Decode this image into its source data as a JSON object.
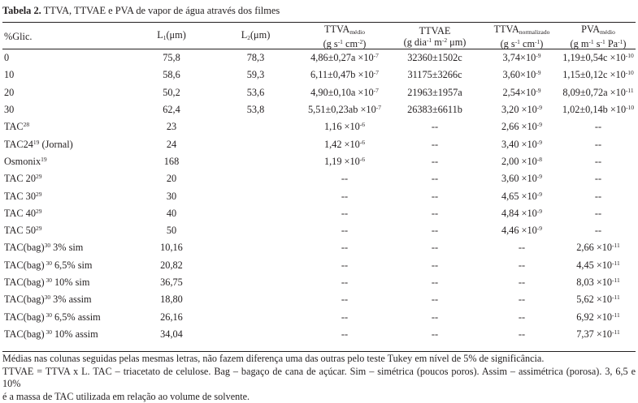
{
  "caption": {
    "label": "Tabela 2.",
    "text": " TTVA, TTVAE e PVA de vapor de água através dos filmes"
  },
  "headers": {
    "glic": "%Glic.",
    "l1": "L",
    "l1_sub": "1",
    "l1_unit": "(μm)",
    "l2": "L",
    "l2_sub": "2",
    "l2_unit": "(μm)",
    "ttva": "TTVA",
    "ttva_sub": "médio",
    "ttva_unit": "(g s-1 cm-2)",
    "ttvae": "TTVAE",
    "ttvae_unit": "(g dia-1 m-2 μm)",
    "ttvan": "TTVA",
    "ttvan_sub": "normalizado",
    "ttvan_unit": "(g s-1 cm-1)",
    "pva": "PVA",
    "pva_sub": "médio",
    "pva_unit": "(g m-1 s-1 Pa-1)"
  },
  "rows": [
    {
      "name": "0",
      "sup": "",
      "name2": "",
      "l1": "75,8",
      "l2": "78,3",
      "ttva": "4,86±0,27a ×10",
      "ttva_exp": "-7",
      "ttvae": "32360±1502c",
      "ttvan": "3,74×10",
      "ttvan_exp": "-9",
      "pva": "1,19±0,54c ×10",
      "pva_exp": "-10"
    },
    {
      "name": "10",
      "sup": "",
      "name2": "",
      "l1": "58,6",
      "l2": "59,3",
      "ttva": "6,11±0,47b ×10",
      "ttva_exp": "-7",
      "ttvae": "31175±3266c",
      "ttvan": "3,60×10",
      "ttvan_exp": "-9",
      "pva": "1,15±0,12c ×10",
      "pva_exp": "-10"
    },
    {
      "name": "20",
      "sup": "",
      "name2": "",
      "l1": "50,2",
      "l2": "53,6",
      "ttva": "4,90±0,10a ×10",
      "ttva_exp": "-7",
      "ttvae": "21963±1957a",
      "ttvan": "2,54×10",
      "ttvan_exp": "-9",
      "pva": "8,09±0,72a ×10",
      "pva_exp": "-11"
    },
    {
      "name": "30",
      "sup": "",
      "name2": "",
      "l1": "62,4",
      "l2": "53,8",
      "ttva": "5,51±0,23ab ×10",
      "ttva_exp": "-7",
      "ttvae": "26383±6611b",
      "ttvan": "3,20 ×10",
      "ttvan_exp": "-9",
      "pva": "1,02±0,14b ×10",
      "pva_exp": "-10"
    },
    {
      "name": "TAC",
      "sup": "28",
      "name2": "",
      "l1": "23",
      "l2": "",
      "ttva": "1,16 ×10",
      "ttva_exp": "-6",
      "ttvae": "--",
      "ttvan": "2,66 ×10",
      "ttvan_exp": "-9",
      "pva": "--",
      "pva_exp": ""
    },
    {
      "name": "TAC24",
      "sup": "19",
      "name2": " (Jornal)",
      "l1": "24",
      "l2": "",
      "ttva": "1,42 ×10",
      "ttva_exp": "-6",
      "ttvae": "--",
      "ttvan": "3,40 ×10",
      "ttvan_exp": "-9",
      "pva": "--",
      "pva_exp": ""
    },
    {
      "name": "Osmonix",
      "sup": "19",
      "name2": "",
      "l1": "168",
      "l2": "",
      "ttva": "1,19 ×10",
      "ttva_exp": "-6",
      "ttvae": "--",
      "ttvan": "2,00 ×10",
      "ttvan_exp": "-8",
      "pva": "--",
      "pva_exp": ""
    },
    {
      "name": "TAC 20",
      "sup": "29",
      "name2": "",
      "l1": "20",
      "l2": "",
      "ttva": "--",
      "ttva_exp": "",
      "ttvae": "--",
      "ttvan": "3,60 ×10",
      "ttvan_exp": "-9",
      "pva": "--",
      "pva_exp": ""
    },
    {
      "name": "TAC 30",
      "sup": "29",
      "name2": "",
      "l1": "30",
      "l2": "",
      "ttva": "--",
      "ttva_exp": "",
      "ttvae": "--",
      "ttvan": "4,65 ×10",
      "ttvan_exp": "-9",
      "pva": "--",
      "pva_exp": ""
    },
    {
      "name": "TAC 40",
      "sup": "29",
      "name2": "",
      "l1": "40",
      "l2": "",
      "ttva": "--",
      "ttva_exp": "",
      "ttvae": "--",
      "ttvan": "4,84 ×10",
      "ttvan_exp": "-9",
      "pva": "--",
      "pva_exp": ""
    },
    {
      "name": "TAC 50",
      "sup": "29",
      "name2": "",
      "l1": "50",
      "l2": "",
      "ttva": "--",
      "ttva_exp": "",
      "ttvae": "--",
      "ttvan": "4,46 ×10",
      "ttvan_exp": "-9",
      "pva": "--",
      "pva_exp": ""
    },
    {
      "name": "TAC(bag)",
      "sup": "30",
      "name2": " 3% sim",
      "l1": "10,16",
      "l2": "",
      "ttva": "--",
      "ttva_exp": "",
      "ttvae": "--",
      "ttvan": "--",
      "ttvan_exp": "",
      "pva": "2,66 ×10",
      "pva_exp": "-11"
    },
    {
      "name": "TAC(bag)",
      "sup": " 30",
      "name2": " 6,5% sim",
      "l1": "20,82",
      "l2": "",
      "ttva": "--",
      "ttva_exp": "",
      "ttvae": "--",
      "ttvan": "--",
      "ttvan_exp": "",
      "pva": "4,45 ×10",
      "pva_exp": "-11"
    },
    {
      "name": "TAC(bag)",
      "sup": " 30",
      "name2": " 10% sim",
      "l1": "36,75",
      "l2": "",
      "ttva": "--",
      "ttva_exp": "",
      "ttvae": "--",
      "ttvan": "--",
      "ttvan_exp": "",
      "pva": "8,03 ×10",
      "pva_exp": "-11"
    },
    {
      "name": "TAC(bag)",
      "sup": "30",
      "name2": " 3% assim",
      "l1": "18,80",
      "l2": "",
      "ttva": "--",
      "ttva_exp": "",
      "ttvae": "--",
      "ttvan": "--",
      "ttvan_exp": "",
      "pva": "5,62 ×10",
      "pva_exp": "-11"
    },
    {
      "name": "TAC(bag)",
      "sup": " 30",
      "name2": " 6,5% assim",
      "l1": "26,16",
      "l2": "",
      "ttva": "--",
      "ttva_exp": "",
      "ttvae": "--",
      "ttvan": "--",
      "ttvan_exp": "",
      "pva": "6,92 ×10",
      "pva_exp": "-11"
    },
    {
      "name": "TAC(bag)",
      "sup": " 30",
      "name2": " 10% assim",
      "l1": "34,04",
      "l2": "",
      "ttva": "--",
      "ttva_exp": "",
      "ttvae": "--",
      "ttvan": "--",
      "ttvan_exp": "",
      "pva": "7,37 ×10",
      "pva_exp": "-11"
    }
  ],
  "notes": {
    "line1": "Médias nas colunas seguidas pelas mesmas letras, não fazem diferença uma das outras pelo teste Tukey em nível de 5% de significância.",
    "line2": "TTVAE = TTVA x L. TAC – triacetato de celulose. Bag – bagaço de cana de açúcar. Sim – simétrica (poucos poros). Assim – assimétrica (porosa). 3, 6,5 e 10%",
    "line3": "é a massa de TAC utilizada em relação ao volume de solvente."
  }
}
